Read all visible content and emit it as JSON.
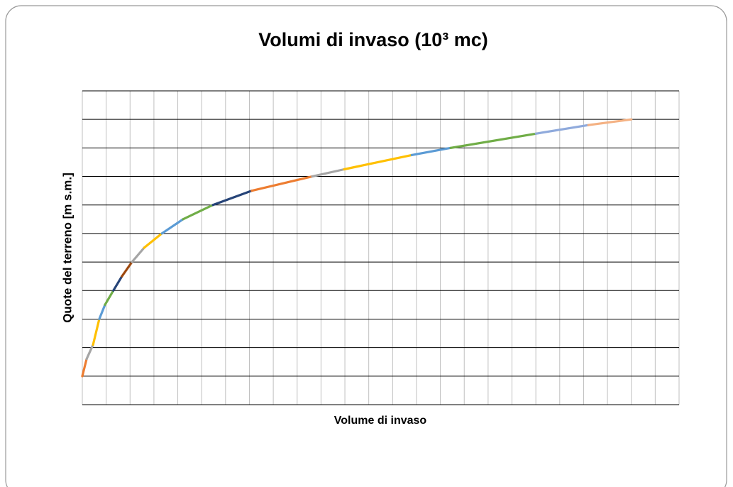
{
  "chart_data": {
    "type": "line",
    "title": "Volumi di invaso (10³ mc)",
    "x_label": "Volume di invaso",
    "y_label": "Quote del terreno [m s.m.]",
    "x": [
      0,
      0.18,
      0.45,
      0.71,
      0.95,
      1.3,
      1.66,
      2.08,
      2.59,
      3.33,
      4.22,
      5.47,
      7.1,
      9.63,
      10.97,
      13.8,
      15.43,
      19.0,
      21.2,
      23.0
    ],
    "series": [
      {
        "colors": [
          "#ed7d31",
          "#ed7d31",
          "#a5a5a5",
          "#ffc000",
          "#5b9bd5",
          "#70ad47",
          "#264478",
          "#9e480e",
          "#a5a5a5",
          "#ffc000",
          "#5b9bd5",
          "#70ad47",
          "#264478",
          "#ed7d31",
          "#a5a5a5",
          "#ffc000",
          "#5b9bd5",
          "#70ad47",
          "#8faadc",
          "#f4b183"
        ],
        "values": [
          1,
          1.6,
          2.1,
          3,
          3.5,
          4.0,
          4.5,
          5.0,
          5.5,
          6.0,
          6.5,
          7.0,
          7.5,
          8.0,
          8.25,
          8.75,
          9.0,
          9.5,
          9.8,
          10.0
        ]
      }
    ],
    "xlim": [
      0,
      25
    ],
    "xticks": [
      0,
      1,
      2,
      3,
      4,
      5,
      6,
      7,
      8,
      9,
      10,
      11,
      12,
      13,
      14,
      15,
      16,
      17,
      18,
      19,
      20,
      21,
      22,
      23,
      24,
      25
    ],
    "ylim": [
      0,
      11
    ],
    "yticks": [
      0,
      1,
      2,
      3,
      4,
      5,
      6,
      7,
      8,
      9,
      10,
      11
    ],
    "grid": true
  }
}
